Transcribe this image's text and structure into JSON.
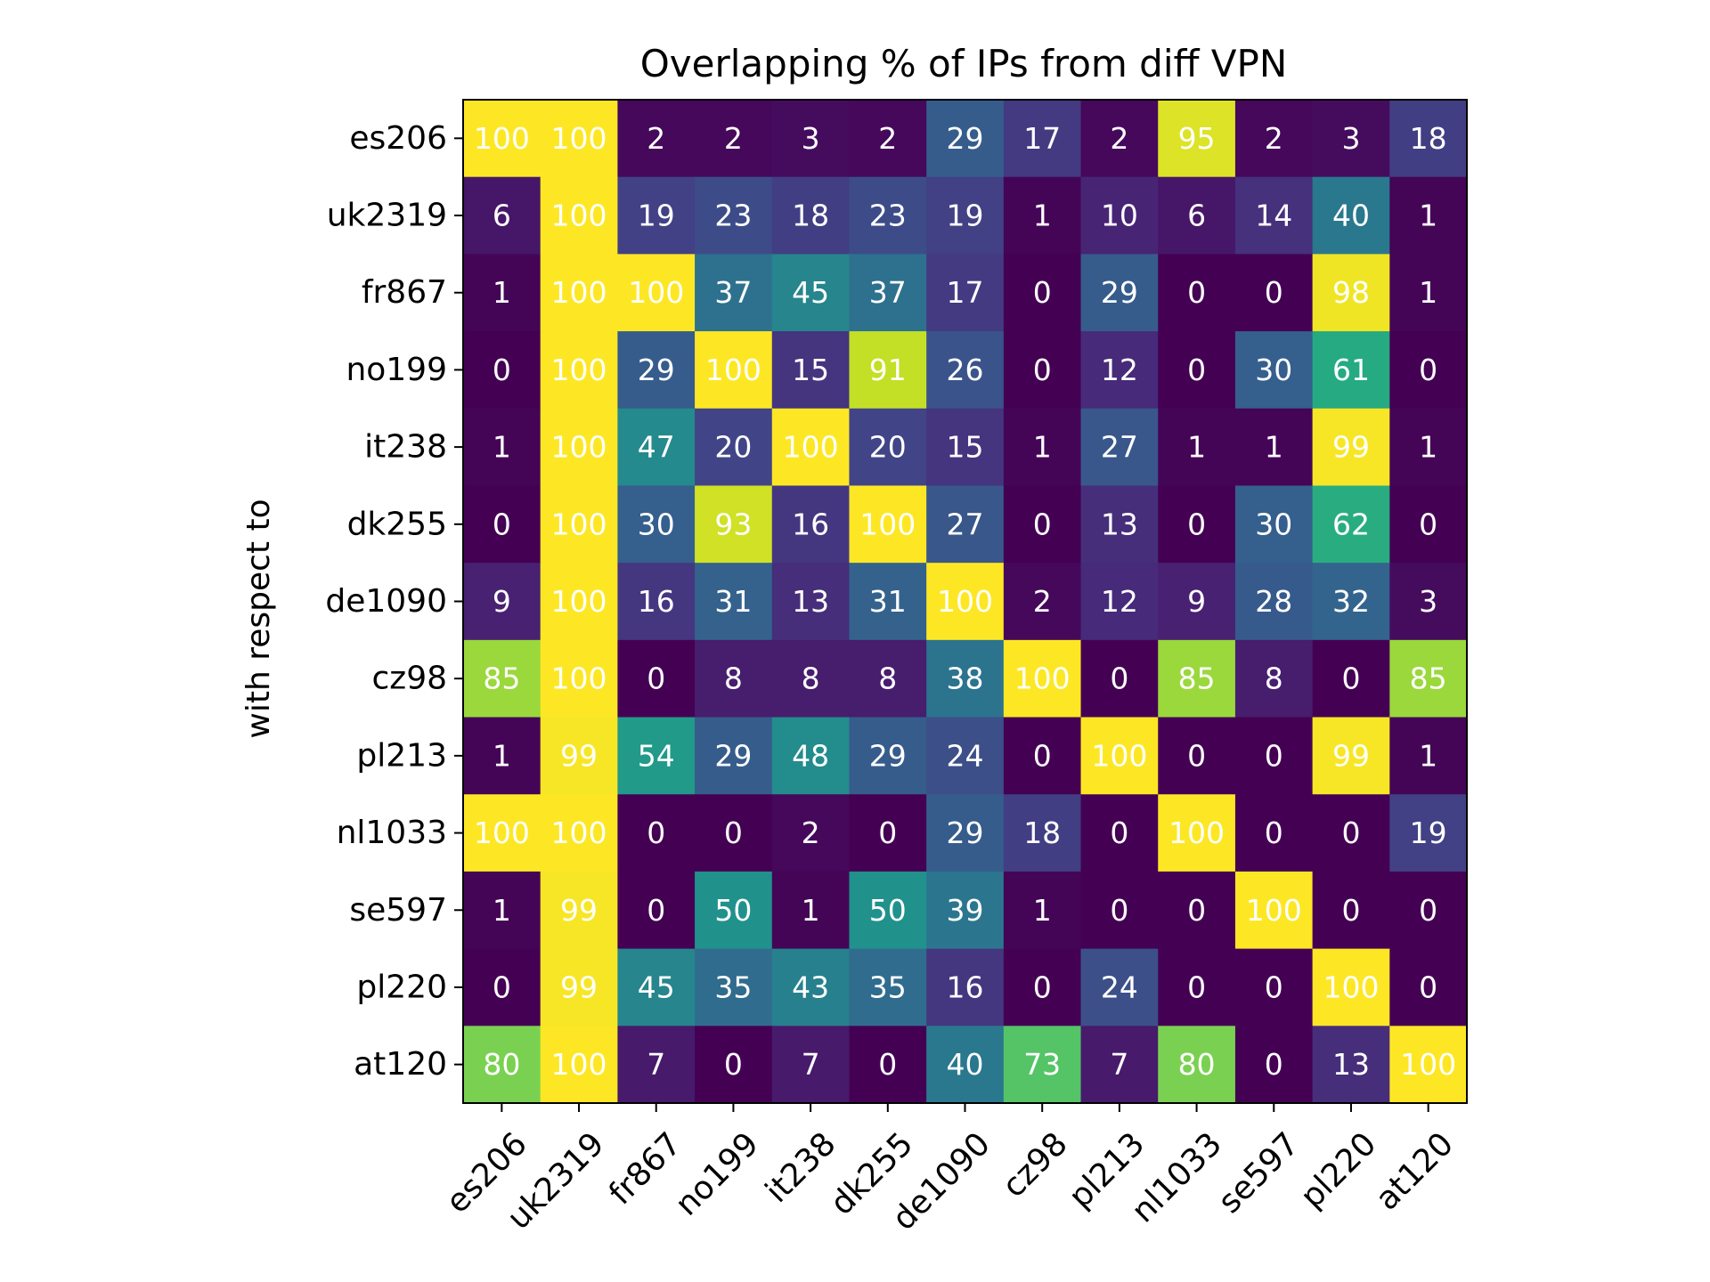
{
  "chart_data": {
    "type": "heatmap",
    "title": "Overlapping % of IPs from diff VPN",
    "ylabel": "with respect to",
    "xlabel": "",
    "colormap": "viridis",
    "value_range": [
      0,
      100
    ],
    "x_categories": [
      "es206",
      "uk2319",
      "fr867",
      "no199",
      "it238",
      "dk255",
      "de1090",
      "cz98",
      "pl213",
      "nl1033",
      "se597",
      "pl220",
      "at120"
    ],
    "y_categories": [
      "es206",
      "uk2319",
      "fr867",
      "no199",
      "it238",
      "dk255",
      "de1090",
      "cz98",
      "pl213",
      "nl1033",
      "se597",
      "pl220",
      "at120"
    ],
    "values": [
      [
        100,
        100,
        2,
        2,
        3,
        2,
        29,
        17,
        2,
        95,
        2,
        3,
        18
      ],
      [
        6,
        100,
        19,
        23,
        18,
        23,
        19,
        1,
        10,
        6,
        14,
        40,
        1
      ],
      [
        1,
        100,
        100,
        37,
        45,
        37,
        17,
        0,
        29,
        0,
        0,
        98,
        1
      ],
      [
        0,
        100,
        29,
        100,
        15,
        91,
        26,
        0,
        12,
        0,
        30,
        61,
        0
      ],
      [
        1,
        100,
        47,
        20,
        100,
        20,
        15,
        1,
        27,
        1,
        1,
        99,
        1
      ],
      [
        0,
        100,
        30,
        93,
        16,
        100,
        27,
        0,
        13,
        0,
        30,
        62,
        0
      ],
      [
        9,
        100,
        16,
        31,
        13,
        31,
        100,
        2,
        12,
        9,
        28,
        32,
        3
      ],
      [
        85,
        100,
        0,
        8,
        8,
        8,
        38,
        100,
        0,
        85,
        8,
        0,
        85
      ],
      [
        1,
        99,
        54,
        29,
        48,
        29,
        24,
        0,
        100,
        0,
        0,
        99,
        1
      ],
      [
        100,
        100,
        0,
        0,
        2,
        0,
        29,
        18,
        0,
        100,
        0,
        0,
        19
      ],
      [
        1,
        99,
        0,
        50,
        1,
        50,
        39,
        1,
        0,
        0,
        100,
        0,
        0
      ],
      [
        0,
        99,
        45,
        35,
        43,
        35,
        16,
        0,
        24,
        0,
        0,
        100,
        0
      ],
      [
        80,
        100,
        7,
        0,
        7,
        0,
        40,
        73,
        7,
        80,
        0,
        13,
        100
      ]
    ],
    "cell_label_color": "#ffffff",
    "grid": false,
    "legend": "none"
  }
}
